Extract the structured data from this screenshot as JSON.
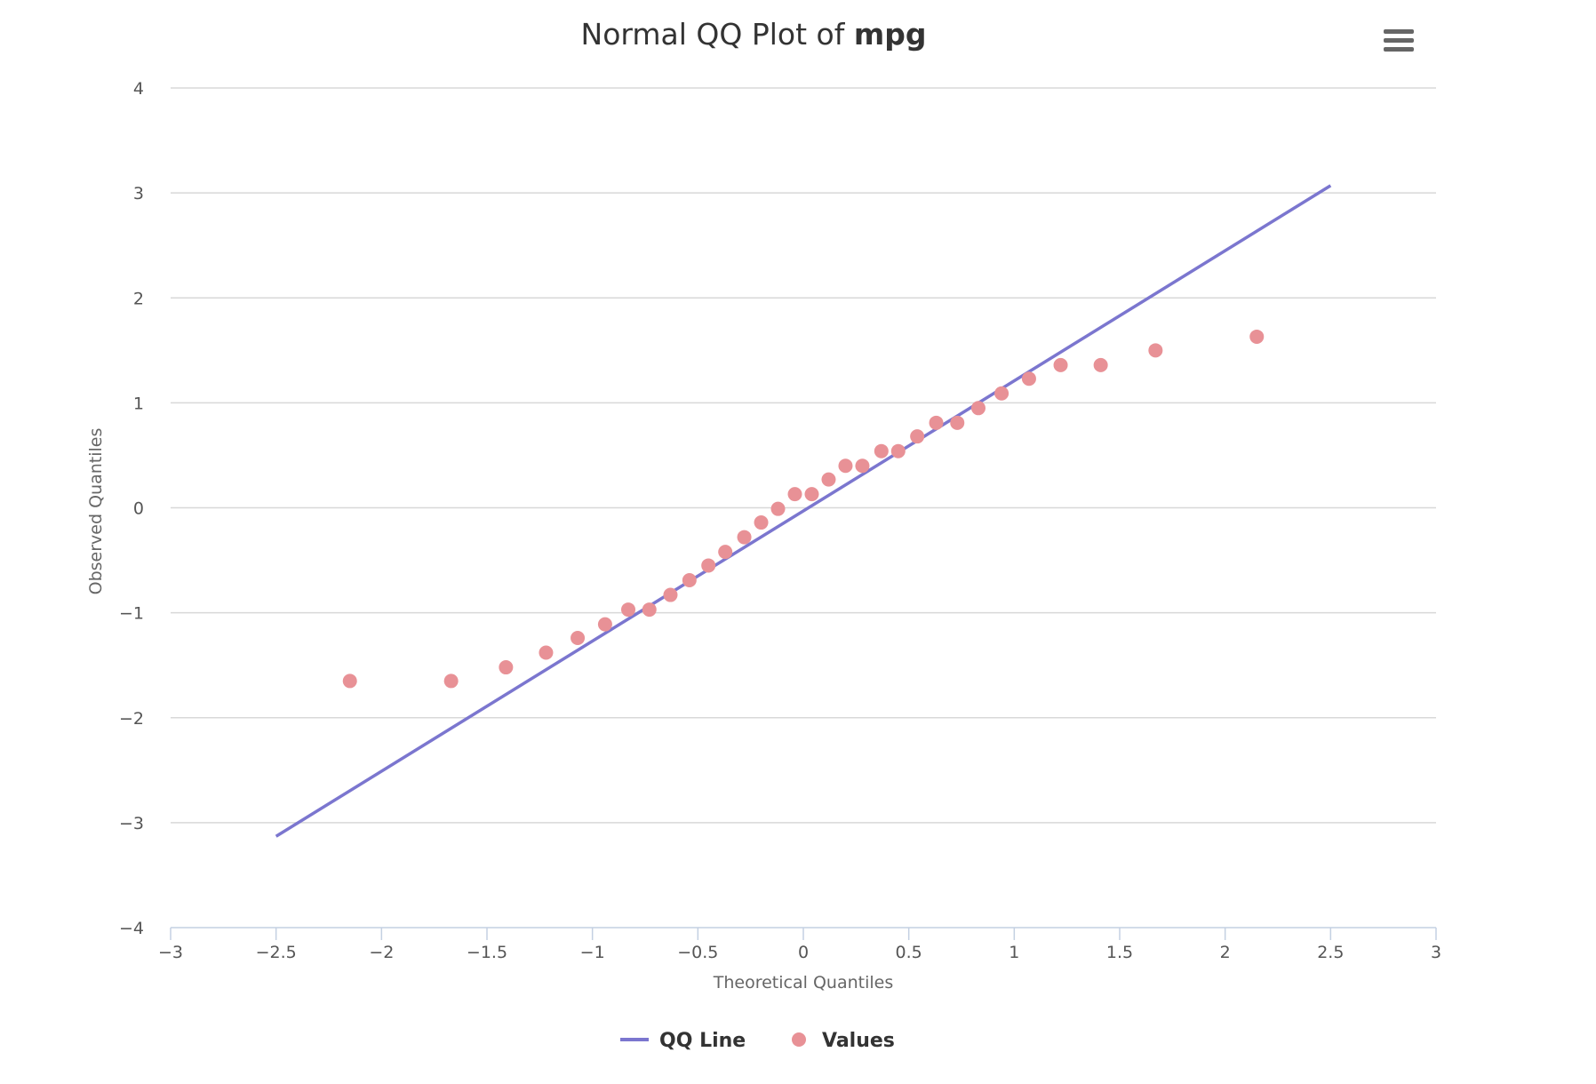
{
  "menu": {
    "icon": "hamburger-menu-icon"
  },
  "chart_data": {
    "type": "scatter",
    "title_prefix": "Normal QQ Plot of ",
    "title_emphasis": "mpg",
    "xlabel": "Theoretical Quantiles",
    "ylabel": "Observed Quantiles",
    "xlim": [
      -3,
      3
    ],
    "ylim": [
      -4,
      4
    ],
    "x_ticks": [
      "−3",
      "−2.5",
      "−2",
      "−1.5",
      "−1",
      "−0.5",
      "0",
      "0.5",
      "1",
      "1.5",
      "2",
      "2.5",
      "3"
    ],
    "y_ticks": [
      "4",
      "3",
      "2",
      "1",
      "0",
      "−1",
      "−2",
      "−3",
      "−4"
    ],
    "grid": true,
    "legend_position": "bottom-center",
    "series": [
      {
        "name": "QQ Line",
        "kind": "line",
        "color": "#7b76cf",
        "points": [
          [
            -2.5,
            -3.13
          ],
          [
            2.5,
            3.07
          ]
        ]
      },
      {
        "name": "Values",
        "kind": "scatter",
        "color": "#e89196",
        "points": [
          [
            -2.15,
            -1.65
          ],
          [
            -1.67,
            -1.65
          ],
          [
            -1.41,
            -1.52
          ],
          [
            -1.22,
            -1.38
          ],
          [
            -1.07,
            -1.24
          ],
          [
            -0.94,
            -1.11
          ],
          [
            -0.83,
            -0.97
          ],
          [
            -0.73,
            -0.97
          ],
          [
            -0.63,
            -0.83
          ],
          [
            -0.54,
            -0.69
          ],
          [
            -0.45,
            -0.55
          ],
          [
            -0.37,
            -0.42
          ],
          [
            -0.28,
            -0.28
          ],
          [
            -0.2,
            -0.14
          ],
          [
            -0.12,
            -0.01
          ],
          [
            -0.04,
            0.13
          ],
          [
            0.04,
            0.13
          ],
          [
            0.12,
            0.27
          ],
          [
            0.2,
            0.4
          ],
          [
            0.28,
            0.4
          ],
          [
            0.37,
            0.54
          ],
          [
            0.45,
            0.54
          ],
          [
            0.54,
            0.68
          ],
          [
            0.63,
            0.81
          ],
          [
            0.73,
            0.81
          ],
          [
            0.83,
            0.95
          ],
          [
            0.94,
            1.09
          ],
          [
            1.07,
            1.23
          ],
          [
            1.22,
            1.36
          ],
          [
            1.41,
            1.36
          ],
          [
            1.67,
            1.5
          ],
          [
            2.15,
            1.63
          ]
        ]
      }
    ]
  }
}
